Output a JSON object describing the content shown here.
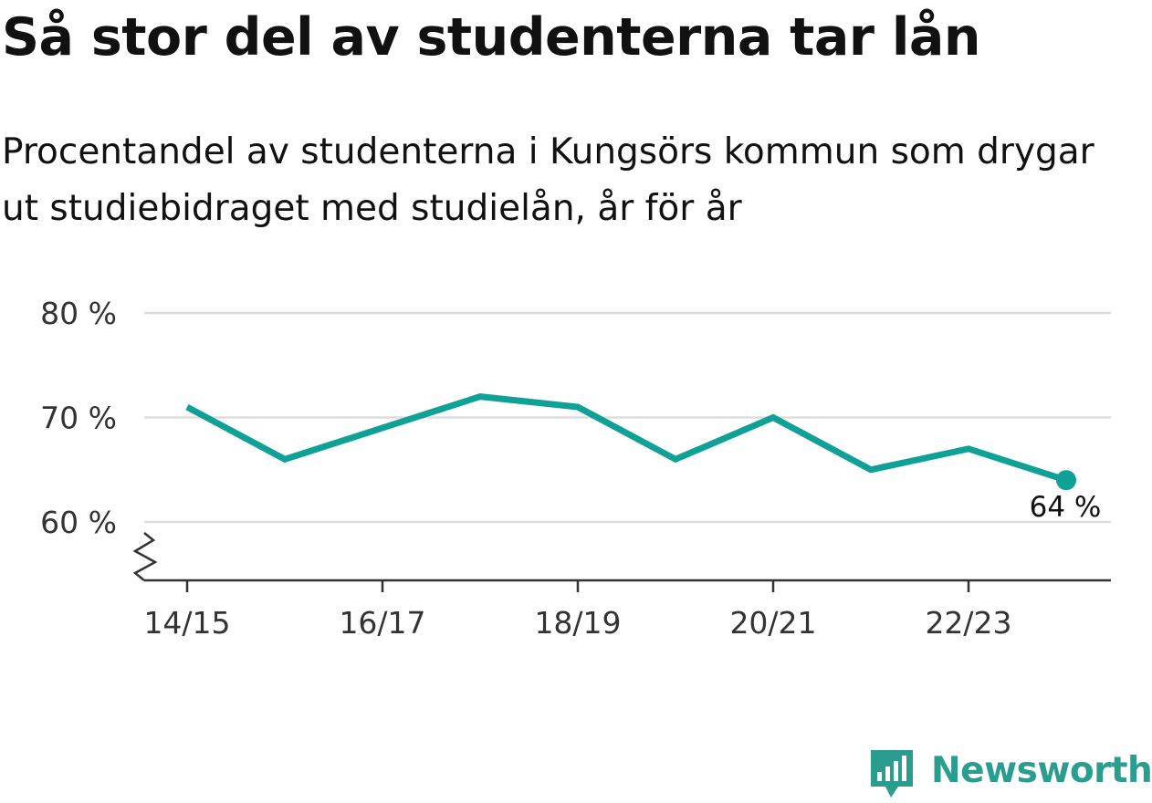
{
  "header": {
    "title": "Så stor del av studenterna tar lån",
    "subtitle": "Procentandel av studenterna i Kungsörs kommun som drygar ut studiebidraget med studielån, år för år"
  },
  "brand": {
    "name": "Newsworthy",
    "icon": "newsworthy-logo-icon",
    "color": "#2a9d8f"
  },
  "colors": {
    "line": "#0fa196",
    "grid": "#dddddd",
    "axis": "#333333"
  },
  "chart_data": {
    "type": "line",
    "x": [
      "14/15",
      "15/16",
      "16/17",
      "17/18",
      "18/19",
      "19/20",
      "20/21",
      "21/22",
      "22/23",
      "23/24"
    ],
    "x_tick_labels": [
      "14/15",
      "16/17",
      "18/19",
      "20/21",
      "22/23"
    ],
    "series": [
      {
        "values": [
          71,
          66,
          69,
          72,
          71,
          66,
          70,
          65,
          67,
          64
        ]
      }
    ],
    "y_ticks": [
      60,
      70,
      80
    ],
    "y_tick_labels": [
      "60 %",
      "70 %",
      "80 %"
    ],
    "ylim": [
      55,
      80
    ],
    "y_axis_break": true,
    "grid": true,
    "end_label": "64 %",
    "xlabel": "",
    "ylabel": ""
  }
}
